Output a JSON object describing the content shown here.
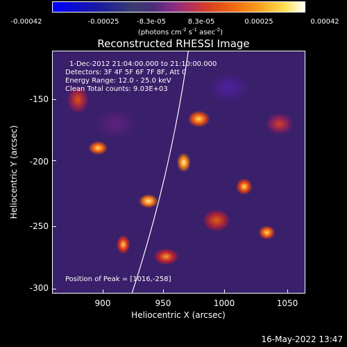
{
  "colorbar": {
    "tick_labels": [
      "-0.00042",
      "-0.00025",
      "-8.3e-05",
      "8.3e-05",
      "0.00025",
      "0.00042"
    ],
    "unit_text": "(photons cm",
    "unit_exp1": "-2",
    "unit_mid1": " s",
    "unit_exp2": "-1",
    "unit_mid2": " asec",
    "unit_exp3": "-2",
    "unit_end": ")"
  },
  "title": "Reconstructed RHESSI Image",
  "info": {
    "line1": "1-Dec-2012 21:04:00.000 to 21:10:00.000",
    "line2": "Detectors: 3F 4F 5F 6F 7F 8F, Att 0",
    "line3": "Energy Range: 12.0 - 25.0 keV",
    "line4": "Clean     Total counts: 9.03E+03",
    "peak": "Position of Peak = [1016,-258]"
  },
  "chart_data": {
    "type": "heatmap",
    "title": "Reconstructed RHESSI Image",
    "xlabel": "Heliocentric X (arcsec)",
    "ylabel": "Heliocentric Y (arcsec)",
    "xlim": [
      864,
      1052
    ],
    "ylim": [
      -303,
      -123
    ],
    "x_ticks": [
      "900",
      "950",
      "1000",
      "1050"
    ],
    "y_ticks": [
      "-150",
      "-200",
      "-250",
      "-300"
    ],
    "colorbar_range": [
      -0.00042,
      0.00042
    ],
    "colormap": "blue-purple-red-yellow-white",
    "peak_position": [
      1016,
      -258
    ]
  },
  "timestamp": "16-May-2022 13:47"
}
